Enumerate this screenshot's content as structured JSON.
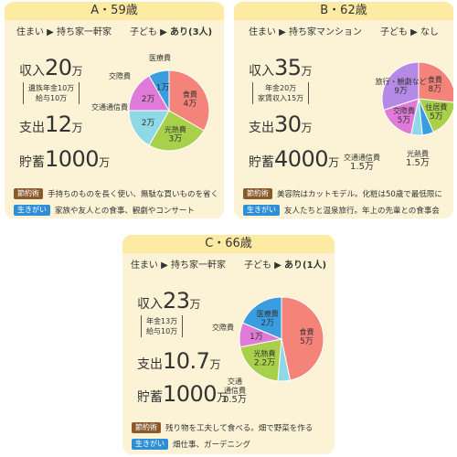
{
  "cards": [
    {
      "title": "A・59歳",
      "info": "住まい ▶ 持ち家一軒家　　子ども ▶ ",
      "info_bold": "あり(3人)",
      "income_label": "収入",
      "income_value": "20",
      "income_unit": "万",
      "income_detail": [
        "遺族年金10万",
        "給与10万"
      ],
      "expense_label": "支出",
      "expense_value": "12",
      "expense_unit": "万",
      "savings_label": "貯蓄",
      "savings_value": "1000",
      "savings_unit": "万",
      "tip_label": "節約術",
      "tip_text": "手持ちのものを長く使い、無駄な買いものを省く",
      "ikigai_label": "生きがい",
      "ikigai_text": "家族や友人との食事、観劇やコンサート"
    },
    {
      "title": "B・62歳",
      "info": "住まい ▶ 持ち家マンション　　子ども ▶ なし",
      "info_bold": "",
      "income_label": "収入",
      "income_value": "35",
      "income_unit": "万",
      "income_detail": [
        "年金20万",
        "家賃収入15万"
      ],
      "expense_label": "支出",
      "expense_value": "30",
      "expense_unit": "万",
      "savings_label": "貯蓄",
      "savings_value": "4000",
      "savings_unit": "万",
      "tip_label": "節約術",
      "tip_text": "美容院はカットモデル。化粧は50歳で最低限に",
      "ikigai_label": "生きがい",
      "ikigai_text": "友人たちと温泉旅行。年上の先輩との食事会"
    },
    {
      "title": "C・66歳",
      "info": "住まい ▶ 持ち家一軒家　　子ども ▶ ",
      "info_bold": "あり(1人)",
      "income_label": "収入",
      "income_value": "23",
      "income_unit": "万",
      "income_detail": [
        "年金13万",
        "給与10万"
      ],
      "expense_label": "支出",
      "expense_value": "10.7",
      "expense_unit": "万",
      "savings_label": "貯蓄",
      "savings_value": "1000",
      "savings_unit": "万",
      "tip_label": "節約術",
      "tip_text": "残り物を工夫して食べる。畑で野菜を作る",
      "ikigai_label": "生きがい",
      "ikigai_text": "畑仕事、ガーデニング"
    }
  ],
  "chart_data": [
    {
      "type": "pie",
      "slices": [
        {
          "label": "食費",
          "value": 4,
          "value_label": "4万",
          "color": "#f4837a"
        },
        {
          "label": "光熱費",
          "value": 3,
          "value_label": "3万",
          "color": "#a8d04a"
        },
        {
          "label": "交通通信費",
          "value": 2,
          "value_label": "2万",
          "color": "#8fd8e6"
        },
        {
          "label": "交際費",
          "value": 2,
          "value_label": "2万",
          "color": "#e07ad8"
        },
        {
          "label": "医療費",
          "value": 1,
          "value_label": "1万",
          "color": "#3a9de0"
        }
      ]
    },
    {
      "type": "pie",
      "slices": [
        {
          "label": "食費",
          "value": 8,
          "value_label": "8万",
          "color": "#f4837a"
        },
        {
          "label": "住居費",
          "value": 5,
          "value_label": "5万",
          "color": "#a8d04a"
        },
        {
          "label": "光熱費",
          "value": 1.5,
          "value_label": "1.5万",
          "color": "#3a9de0"
        },
        {
          "label": "交通通信費",
          "value": 1.5,
          "value_label": "1.5万",
          "color": "#8fd8e6"
        },
        {
          "label": "交際費",
          "value": 5,
          "value_label": "5万",
          "color": "#e07ad8"
        },
        {
          "label": "旅行・観劇など",
          "value": 9,
          "value_label": "9万",
          "color": "#b58ae6"
        }
      ]
    },
    {
      "type": "pie",
      "slices": [
        {
          "label": "食費",
          "value": 5,
          "value_label": "5万",
          "color": "#f4837a"
        },
        {
          "label": "交通通信費",
          "value": 0.5,
          "value_label": "0.5万",
          "color": "#8fd8e6"
        },
        {
          "label": "光熱費",
          "value": 2.2,
          "value_label": "2.2万",
          "color": "#a8d04a"
        },
        {
          "label": "交際費",
          "value": 1,
          "value_label": "1万",
          "color": "#e07ad8"
        },
        {
          "label": "医療費",
          "value": 2,
          "value_label": "2万",
          "color": "#3a9de0"
        }
      ]
    }
  ]
}
